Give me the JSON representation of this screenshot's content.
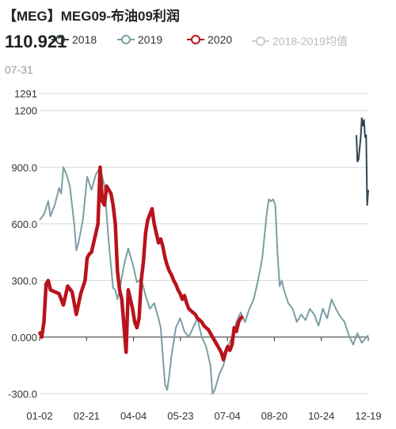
{
  "title": "【MEG】MEG09-布油09利润",
  "readout": {
    "value": "110.921",
    "date": "07-31"
  },
  "legend": [
    {
      "label": "2018",
      "color": "#2f4554"
    },
    {
      "label": "2019",
      "color": "#7c9ea4"
    },
    {
      "label": "2020",
      "color": "#b8131c"
    },
    {
      "label": "2018-2019均值",
      "color": "#cccccc"
    }
  ],
  "chart_data": {
    "type": "line",
    "x_ticks": [
      "01-02",
      "02-21",
      "04-04",
      "05-23",
      "07-04",
      "08-20",
      "10-24",
      "12-19"
    ],
    "y_ticks": [
      "1291",
      "1200",
      "900.0",
      "600.0",
      "300.0",
      "0.000",
      "-300.0"
    ],
    "ylim": [
      -340,
      1291
    ],
    "series": [
      {
        "name": "2018",
        "color": "#2f4554",
        "points": [
          [
            0.9638,
            1070
          ],
          [
            0.9671,
            930
          ],
          [
            0.9704,
            940
          ],
          [
            0.9737,
            1000
          ],
          [
            0.977,
            1060
          ],
          [
            0.9803,
            1160
          ],
          [
            0.9836,
            1120
          ],
          [
            0.9869,
            1150
          ],
          [
            0.9901,
            1060
          ],
          [
            0.9934,
            1070
          ],
          [
            0.9967,
            700
          ],
          [
            1.0,
            780
          ]
        ]
      },
      {
        "name": "2019",
        "color": "#7c9ea4",
        "points": [
          [
            0.0,
            620
          ],
          [
            0.0132,
            650
          ],
          [
            0.0263,
            720
          ],
          [
            0.0329,
            640
          ],
          [
            0.0461,
            700
          ],
          [
            0.0592,
            790
          ],
          [
            0.0658,
            760
          ],
          [
            0.0724,
            900
          ],
          [
            0.0822,
            860
          ],
          [
            0.0921,
            800
          ],
          [
            0.1053,
            600
          ],
          [
            0.1118,
            460
          ],
          [
            0.1184,
            500
          ],
          [
            0.125,
            560
          ],
          [
            0.1316,
            620
          ],
          [
            0.1447,
            850
          ],
          [
            0.1579,
            780
          ],
          [
            0.1711,
            860
          ],
          [
            0.1842,
            900
          ],
          [
            0.1908,
            850
          ],
          [
            0.1974,
            800
          ],
          [
            0.2105,
            500
          ],
          [
            0.2237,
            260
          ],
          [
            0.2303,
            250
          ],
          [
            0.2368,
            200
          ],
          [
            0.2434,
            250
          ],
          [
            0.2566,
            380
          ],
          [
            0.2697,
            470
          ],
          [
            0.2829,
            390
          ],
          [
            0.2961,
            290
          ],
          [
            0.3092,
            310
          ],
          [
            0.3224,
            220
          ],
          [
            0.3355,
            150
          ],
          [
            0.3487,
            180
          ],
          [
            0.3618,
            100
          ],
          [
            0.3684,
            50
          ],
          [
            0.375,
            -100
          ],
          [
            0.3816,
            -250
          ],
          [
            0.3882,
            -280
          ],
          [
            0.3947,
            -200
          ],
          [
            0.4013,
            -100
          ],
          [
            0.4145,
            50
          ],
          [
            0.4276,
            100
          ],
          [
            0.4408,
            30
          ],
          [
            0.4539,
            0
          ],
          [
            0.4671,
            50
          ],
          [
            0.4803,
            100
          ],
          [
            0.4934,
            0
          ],
          [
            0.5066,
            -50
          ],
          [
            0.5197,
            -150
          ],
          [
            0.5263,
            -300
          ],
          [
            0.5329,
            -280
          ],
          [
            0.5461,
            -200
          ],
          [
            0.5592,
            -150
          ],
          [
            0.5724,
            -50
          ],
          [
            0.5855,
            0
          ],
          [
            0.5987,
            80
          ],
          [
            0.6118,
            130
          ],
          [
            0.625,
            80
          ],
          [
            0.6382,
            150
          ],
          [
            0.6513,
            200
          ],
          [
            0.6645,
            300
          ],
          [
            0.6776,
            420
          ],
          [
            0.6908,
            650
          ],
          [
            0.6974,
            730
          ],
          [
            0.7039,
            720
          ],
          [
            0.7105,
            730
          ],
          [
            0.7171,
            700
          ],
          [
            0.7237,
            450
          ],
          [
            0.7303,
            270
          ],
          [
            0.7368,
            300
          ],
          [
            0.7434,
            250
          ],
          [
            0.7566,
            180
          ],
          [
            0.7697,
            150
          ],
          [
            0.7829,
            80
          ],
          [
            0.7961,
            120
          ],
          [
            0.8092,
            90
          ],
          [
            0.8224,
            150
          ],
          [
            0.8355,
            120
          ],
          [
            0.8487,
            60
          ],
          [
            0.8618,
            150
          ],
          [
            0.875,
            100
          ],
          [
            0.8882,
            200
          ],
          [
            0.9013,
            150
          ],
          [
            0.9145,
            110
          ],
          [
            0.9276,
            80
          ],
          [
            0.9408,
            10
          ],
          [
            0.9539,
            -40
          ],
          [
            0.9671,
            20
          ],
          [
            0.9803,
            -30
          ],
          [
            1.0,
            10
          ]
        ]
      },
      {
        "name": "2020",
        "color": "#b8131c",
        "points": [
          [
            0.0,
            30
          ],
          [
            0.0066,
            0
          ],
          [
            0.0132,
            80
          ],
          [
            0.0197,
            280
          ],
          [
            0.0263,
            300
          ],
          [
            0.0329,
            250
          ],
          [
            0.0461,
            240
          ],
          [
            0.0592,
            230
          ],
          [
            0.0724,
            170
          ],
          [
            0.0855,
            270
          ],
          [
            0.0987,
            240
          ],
          [
            0.1118,
            120
          ],
          [
            0.125,
            230
          ],
          [
            0.1382,
            300
          ],
          [
            0.1447,
            420
          ],
          [
            0.1513,
            440
          ],
          [
            0.1579,
            450
          ],
          [
            0.1711,
            550
          ],
          [
            0.1776,
            600
          ],
          [
            0.1842,
            900
          ],
          [
            0.1908,
            720
          ],
          [
            0.1974,
            700
          ],
          [
            0.2039,
            800
          ],
          [
            0.2105,
            780
          ],
          [
            0.2171,
            760
          ],
          [
            0.2237,
            700
          ],
          [
            0.2303,
            600
          ],
          [
            0.2368,
            350
          ],
          [
            0.2434,
            250
          ],
          [
            0.25,
            200
          ],
          [
            0.2566,
            60
          ],
          [
            0.2632,
            -80
          ],
          [
            0.2697,
            250
          ],
          [
            0.2763,
            200
          ],
          [
            0.2829,
            150
          ],
          [
            0.2895,
            80
          ],
          [
            0.2961,
            50
          ],
          [
            0.3026,
            100
          ],
          [
            0.3092,
            300
          ],
          [
            0.3158,
            400
          ],
          [
            0.3224,
            550
          ],
          [
            0.3289,
            620
          ],
          [
            0.3355,
            650
          ],
          [
            0.3421,
            680
          ],
          [
            0.3487,
            600
          ],
          [
            0.3553,
            550
          ],
          [
            0.3618,
            500
          ],
          [
            0.3684,
            520
          ],
          [
            0.375,
            480
          ],
          [
            0.3816,
            420
          ],
          [
            0.3882,
            380
          ],
          [
            0.3947,
            350
          ],
          [
            0.4013,
            330
          ],
          [
            0.4079,
            300
          ],
          [
            0.4145,
            280
          ],
          [
            0.4211,
            250
          ],
          [
            0.4276,
            230
          ],
          [
            0.4342,
            200
          ],
          [
            0.4408,
            220
          ],
          [
            0.4474,
            180
          ],
          [
            0.4539,
            150
          ],
          [
            0.4605,
            140
          ],
          [
            0.4671,
            130
          ],
          [
            0.4737,
            120
          ],
          [
            0.4803,
            100
          ],
          [
            0.4868,
            90
          ],
          [
            0.4934,
            80
          ],
          [
            0.5,
            60
          ],
          [
            0.5066,
            50
          ],
          [
            0.5132,
            40
          ],
          [
            0.5197,
            20
          ],
          [
            0.5263,
            0
          ],
          [
            0.5329,
            -20
          ],
          [
            0.5395,
            -40
          ],
          [
            0.5461,
            -60
          ],
          [
            0.5526,
            -80
          ],
          [
            0.5592,
            -120
          ],
          [
            0.5658,
            -80
          ],
          [
            0.5724,
            -50
          ],
          [
            0.5789,
            -70
          ],
          [
            0.5855,
            -40
          ],
          [
            0.5921,
            50
          ],
          [
            0.5987,
            30
          ],
          [
            0.6053,
            80
          ],
          [
            0.6118,
            100
          ],
          [
            0.6184,
            110
          ]
        ]
      },
      {
        "name": "2018-2019均值",
        "color": "#cccccc",
        "points": []
      }
    ]
  }
}
